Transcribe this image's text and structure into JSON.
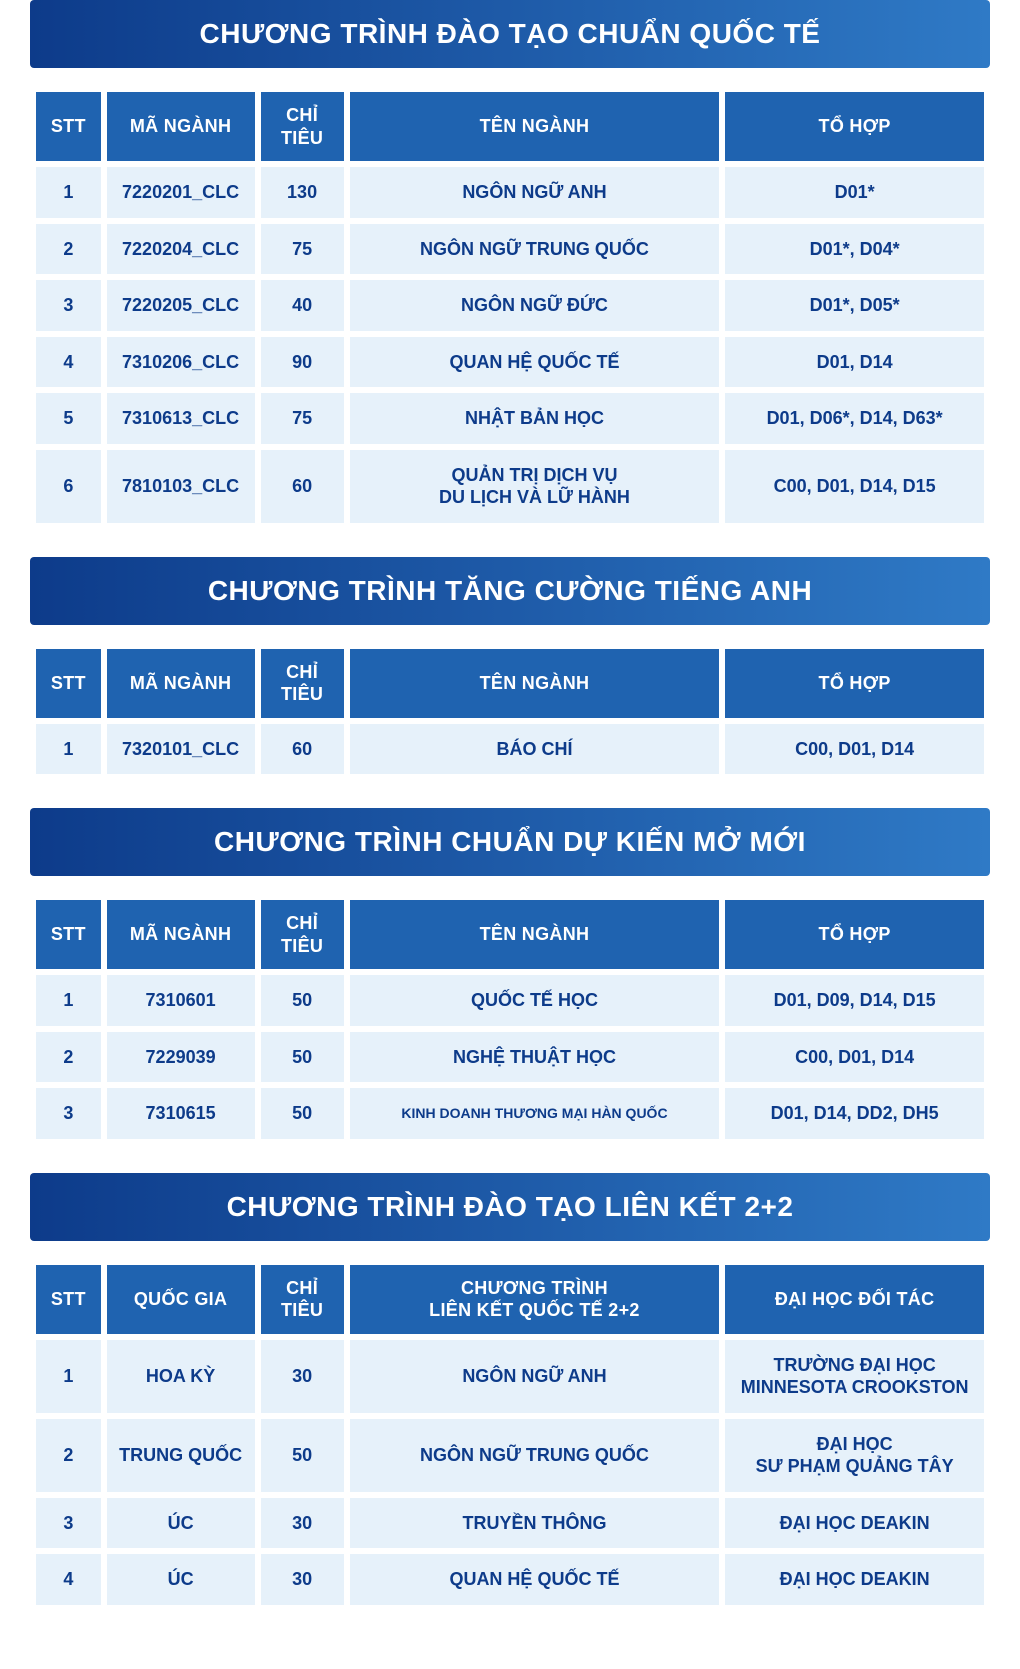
{
  "colors": {
    "title_gradient_from": "#0d3b8a",
    "title_gradient_to": "#2f7ac6",
    "header_bg": "#1f63b0",
    "row_bg": "#e6f1fa",
    "row_text": "#0d3b8a",
    "white": "#ffffff"
  },
  "columnLabels": {
    "stt": "STT",
    "code": "MÃ NGÀNH",
    "quota": "CHỈ\nTIÊU",
    "name": "TÊN NGÀNH",
    "combo": "TỔ HỢP",
    "country": "QUỐC GIA",
    "program22": "CHƯƠNG TRÌNH\nLIÊN KẾT QUỐC TẾ 2+2",
    "partner": "ĐẠI HỌC ĐỐI TÁC"
  },
  "sections": [
    {
      "title": "CHƯƠNG TRÌNH ĐÀO TẠO CHUẨN QUỐC TẾ",
      "columns": [
        "stt",
        "code",
        "quota",
        "name",
        "combo"
      ],
      "rows": [
        {
          "stt": "1",
          "code": "7220201_CLC",
          "quota": "130",
          "name": "NGÔN NGỮ ANH",
          "combo": "D01*"
        },
        {
          "stt": "2",
          "code": "7220204_CLC",
          "quota": "75",
          "name": "NGÔN NGỮ TRUNG QUỐC",
          "combo": "D01*, D04*"
        },
        {
          "stt": "3",
          "code": "7220205_CLC",
          "quota": "40",
          "name": "NGÔN NGỮ ĐỨC",
          "combo": "D01*, D05*"
        },
        {
          "stt": "4",
          "code": "7310206_CLC",
          "quota": "90",
          "name": "QUAN HỆ QUỐC TẾ",
          "combo": "D01, D14"
        },
        {
          "stt": "5",
          "code": "7310613_CLC",
          "quota": "75",
          "name": "NHẬT BẢN HỌC",
          "combo": "D01, D06*, D14, D63*"
        },
        {
          "stt": "6",
          "code": "7810103_CLC",
          "quota": "60",
          "name": "QUẢN TRỊ DỊCH VỤ\nDU LỊCH VÀ LỮ HÀNH",
          "combo": "C00, D01, D14, D15"
        }
      ]
    },
    {
      "title": "CHƯƠNG TRÌNH TĂNG CƯỜNG TIẾNG ANH",
      "columns": [
        "stt",
        "code",
        "quota",
        "name",
        "combo"
      ],
      "rows": [
        {
          "stt": "1",
          "code": "7320101_CLC",
          "quota": "60",
          "name": "BÁO CHÍ",
          "combo": "C00, D01, D14"
        }
      ]
    },
    {
      "title": "CHƯƠNG TRÌNH CHUẨN DỰ KIẾN MỞ MỚI",
      "columns": [
        "stt",
        "code",
        "quota",
        "name",
        "combo"
      ],
      "rows": [
        {
          "stt": "1",
          "code": "7310601",
          "quota": "50",
          "name": "QUỐC TẾ HỌC",
          "combo": "D01, D09, D14, D15"
        },
        {
          "stt": "2",
          "code": "7229039",
          "quota": "50",
          "name": "NGHỆ THUẬT HỌC",
          "combo": "C00, D01, D14"
        },
        {
          "stt": "3",
          "code": "7310615",
          "quota": "50",
          "name": "KINH DOANH THƯƠNG MẠI HÀN QUỐC",
          "name_small": true,
          "combo": "D01, D14, DD2, DH5"
        }
      ]
    },
    {
      "title": "CHƯƠNG TRÌNH ĐÀO TẠO LIÊN KẾT 2+2",
      "columns": [
        "stt",
        "country",
        "quota",
        "program22",
        "partner"
      ],
      "rows": [
        {
          "stt": "1",
          "country": "HOA KỲ",
          "quota": "30",
          "program22": "NGÔN NGỮ ANH",
          "partner": "TRƯỜNG ĐẠI HỌC\nMINNESOTA CROOKSTON"
        },
        {
          "stt": "2",
          "country": "TRUNG QUỐC",
          "quota": "50",
          "program22": "NGÔN NGỮ TRUNG QUỐC",
          "partner": "ĐẠI HỌC\nSƯ PHẠM QUẢNG TÂY"
        },
        {
          "stt": "3",
          "country": "ÚC",
          "quota": "30",
          "program22": "TRUYỀN THÔNG",
          "partner": "ĐẠI HỌC DEAKIN"
        },
        {
          "stt": "4",
          "country": "ÚC",
          "quota": "30",
          "program22": "QUAN HỆ QUỐC TẾ",
          "partner": "ĐẠI HỌC DEAKIN"
        }
      ]
    }
  ]
}
